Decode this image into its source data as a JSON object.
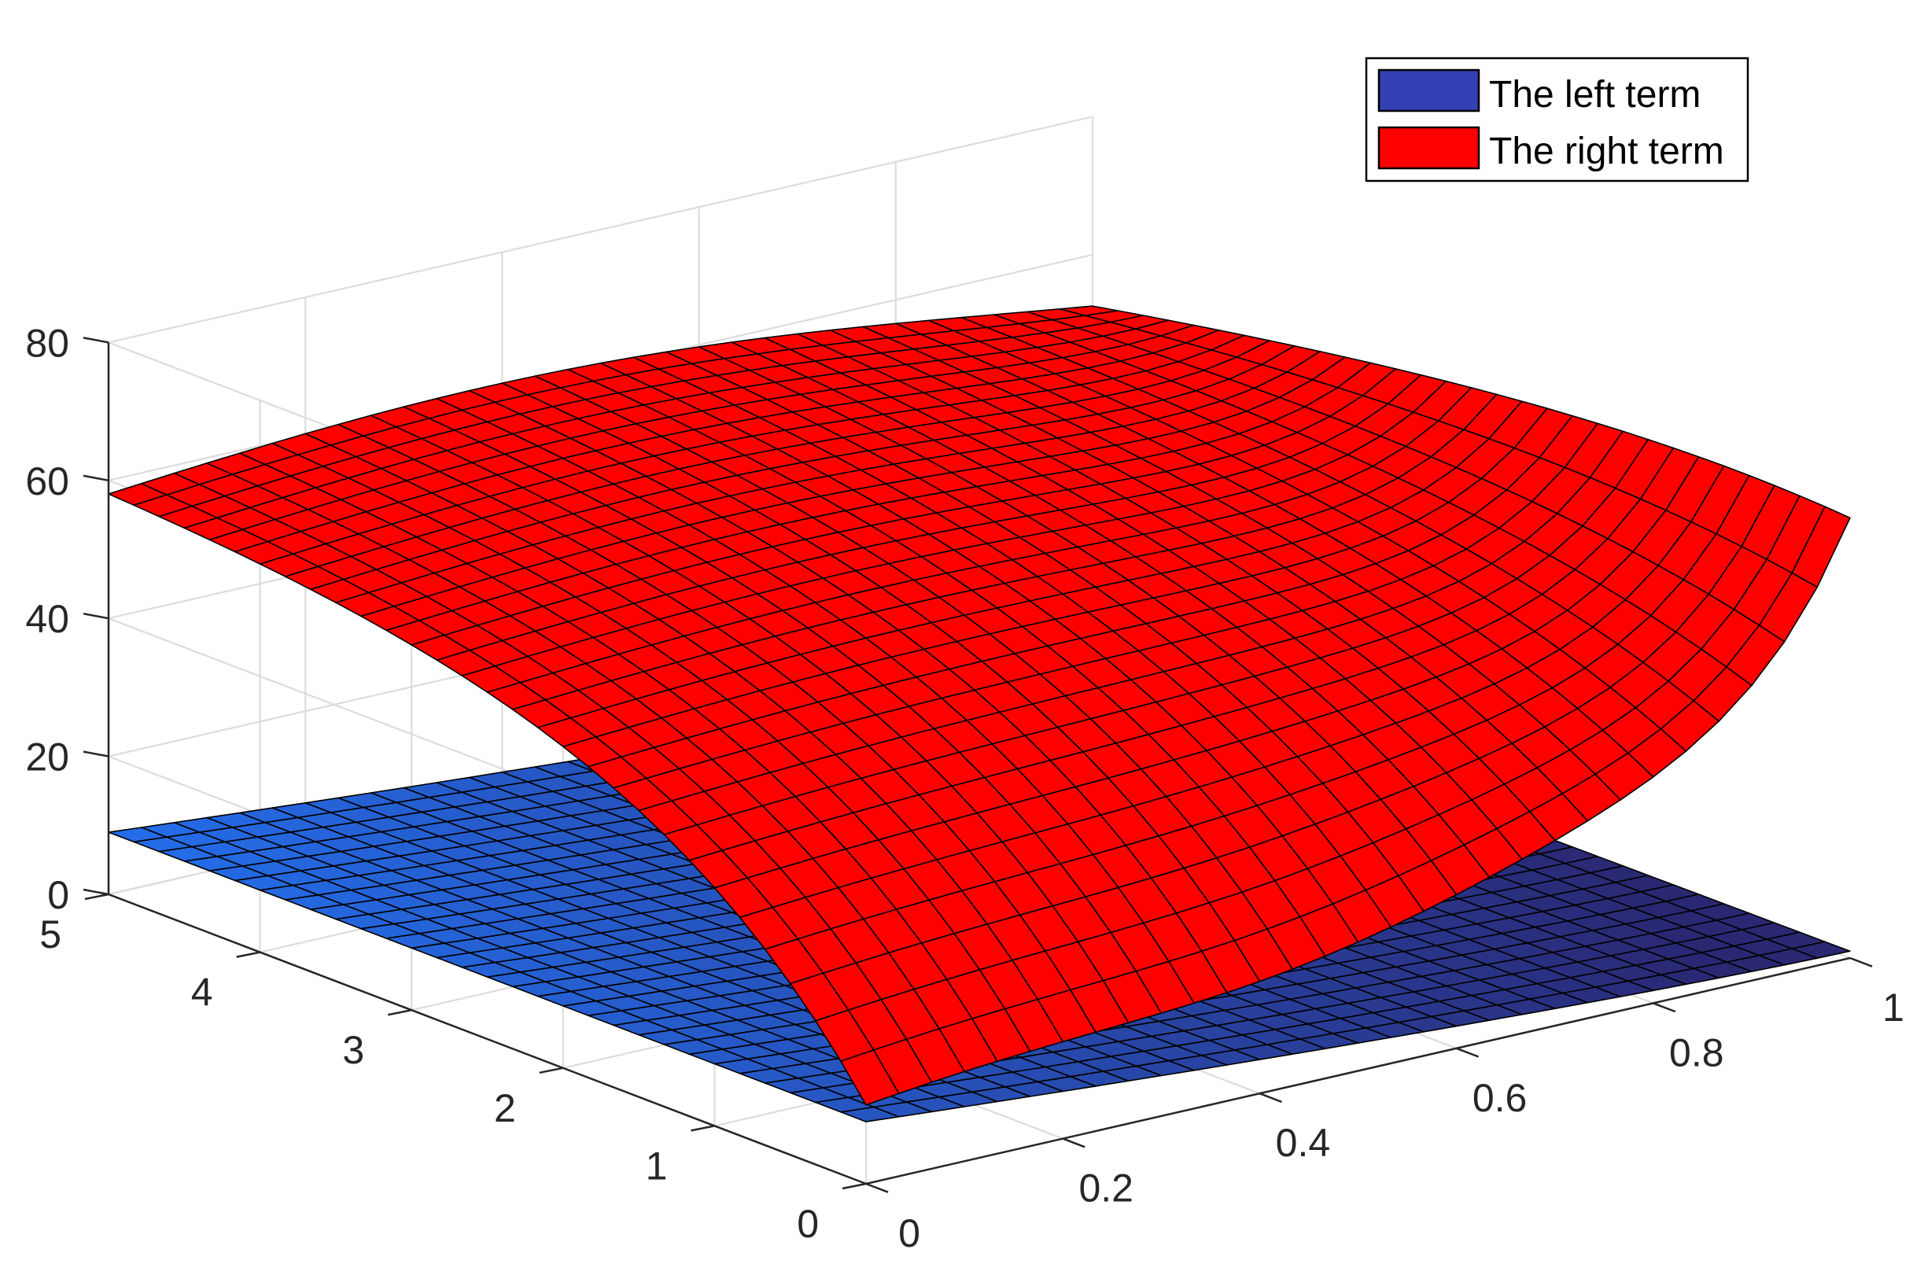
{
  "chart_data": {
    "type": "surface3d",
    "title": "",
    "xlabel": "",
    "ylabel": "",
    "zlabel": "",
    "x_range": [
      0,
      1
    ],
    "y_range": [
      0,
      5
    ],
    "z_range": [
      0,
      80
    ],
    "x_ticks": [
      0,
      0.2,
      0.4,
      0.6,
      0.8,
      1
    ],
    "x_tick_labels": [
      "0",
      "0.2",
      "0.4",
      "0.6",
      "0.8",
      "1"
    ],
    "y_ticks": [
      0,
      1,
      2,
      3,
      4,
      5
    ],
    "y_tick_labels": [
      "0",
      "1",
      "2",
      "3",
      "4",
      "5"
    ],
    "z_ticks": [
      0,
      20,
      40,
      60,
      80
    ],
    "z_tick_labels": [
      "0",
      "20",
      "40",
      "60",
      "80"
    ],
    "grid": true,
    "box": "open back planes with gridlines",
    "legend_position": "top-right",
    "grid_resolution": 30,
    "series": [
      {
        "name": "The left term",
        "color": "#3340b3",
        "edge_color": "#000000",
        "shading": "lighter blue at large y and small x, darker navy toward large x",
        "corner_values": {
          "x0_y0": 9,
          "x0_y5": 9,
          "x1_y0": 1,
          "x1_y5": 1
        },
        "description_points": [
          {
            "x": 0,
            "y": 5,
            "z": 9
          },
          {
            "x": 0,
            "y": 0,
            "z": 9
          },
          {
            "x": 0.5,
            "y": 2.5,
            "z": 6
          },
          {
            "x": 1,
            "y": 5,
            "z": 1
          },
          {
            "x": 1,
            "y": 0,
            "z": 1
          }
        ]
      },
      {
        "name": "The right term",
        "color": "#ff0000",
        "edge_color": "#000000",
        "corner_values": {
          "x0_y0": 11,
          "x0_y5": 60,
          "x1_y0": 52,
          "x1_y5": 63
        },
        "description_points": [
          {
            "x": 0,
            "y": 5,
            "z": 60
          },
          {
            "x": 0,
            "y": 0,
            "z": 11
          },
          {
            "x": 0.05,
            "y": 0,
            "z": 22
          },
          {
            "x": 0.9,
            "y": 0,
            "z": 26
          },
          {
            "x": 1,
            "y": 0,
            "z": 52
          },
          {
            "x": 1,
            "y": 5,
            "z": 63
          }
        ]
      }
    ]
  }
}
